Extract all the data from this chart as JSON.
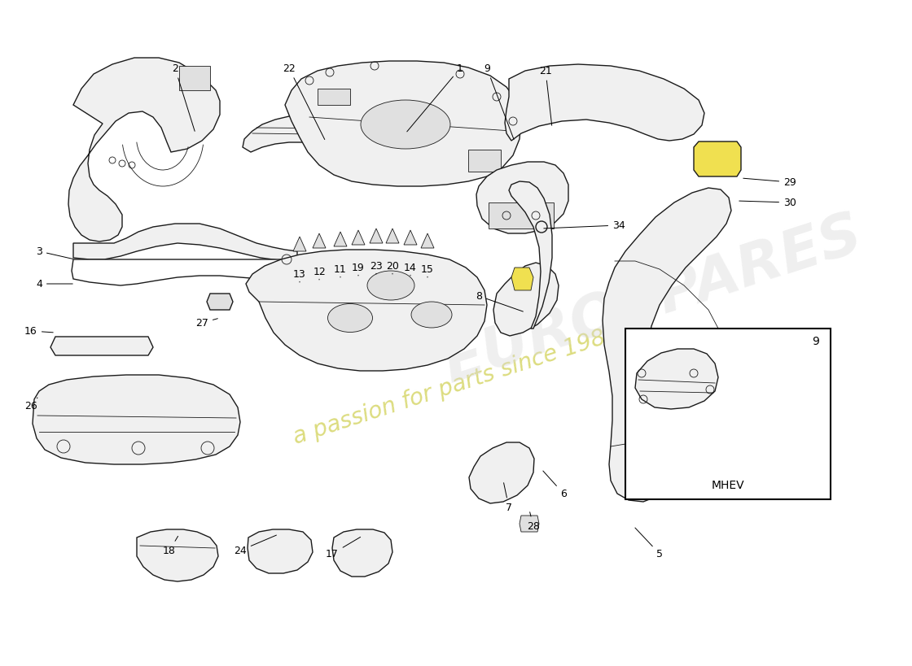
{
  "background_color": "#ffffff",
  "watermark_text": "a passion for parts since 1985",
  "watermark_color": "#d8d870",
  "brand_watermark": "EUROSPARES",
  "mhev_label": "MHEV",
  "fig_width": 11.0,
  "fig_height": 8.0,
  "lw_main": 1.0,
  "lw_thin": 0.6,
  "part_color": "#1a1a1a",
  "fill_white": "#ffffff",
  "fill_light": "#f0f0f0",
  "fill_mid": "#e0e0e0",
  "yellow_fill": "#f0e050"
}
